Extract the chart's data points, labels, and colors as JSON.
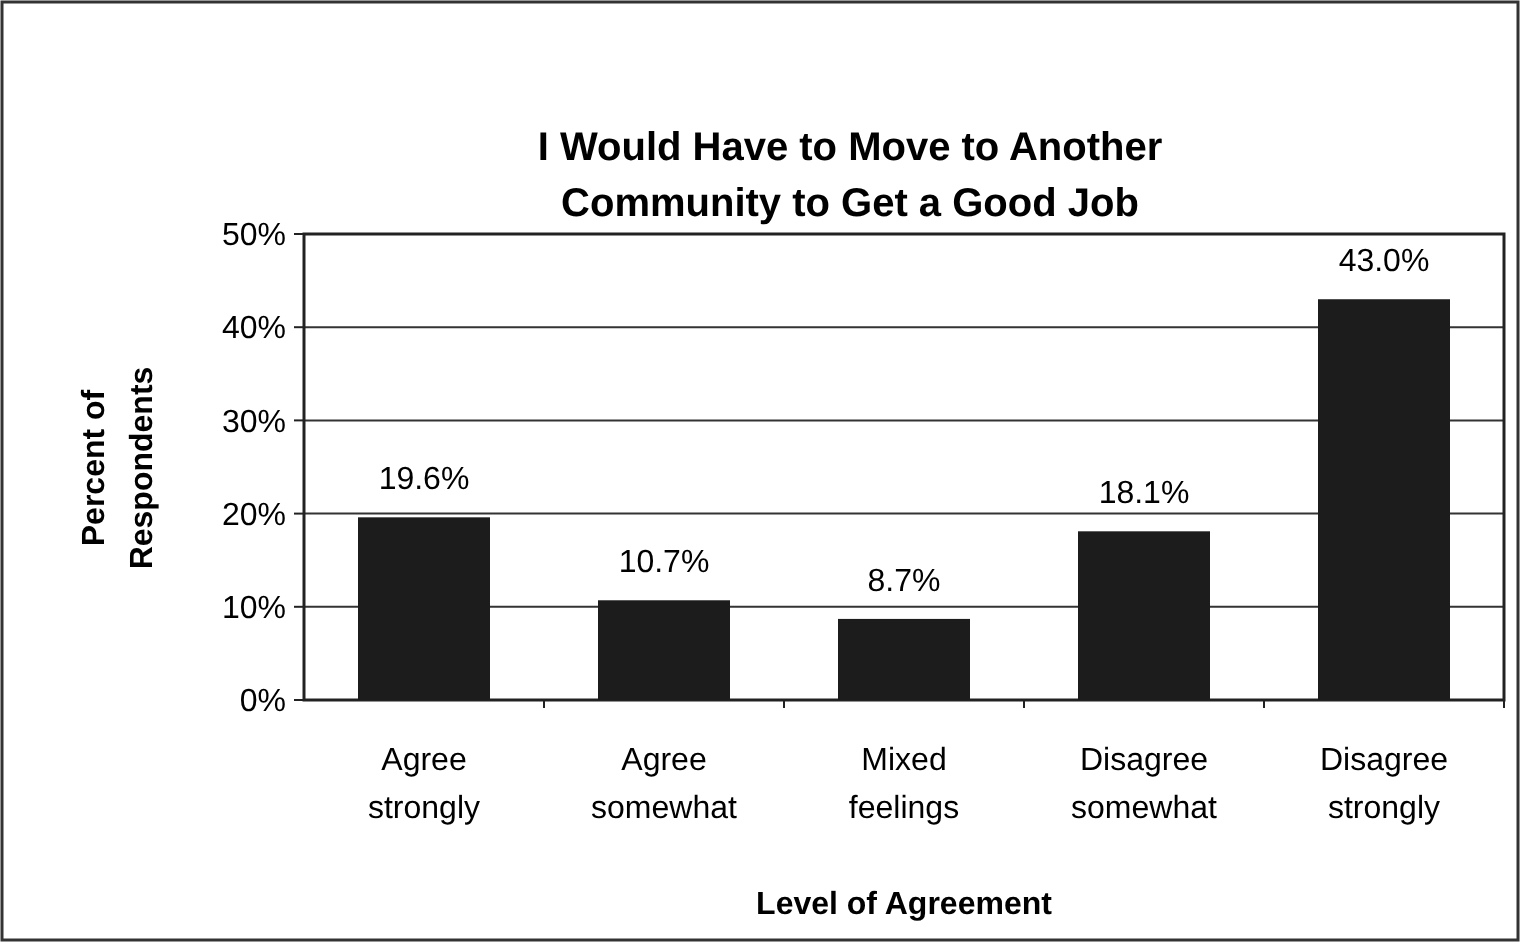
{
  "chart_data": {
    "type": "bar",
    "title": "I Would Have to Move to Another\nCommunity to Get a Good Job",
    "xlabel": "Level of Agreement",
    "ylabel": "Percent of\nRespondents",
    "categories": [
      "Agree\nstrongly",
      "Agree\nsomewhat",
      "Mixed\nfeelings",
      "Disagree\nsomewhat",
      "Disagree\nstrongly"
    ],
    "values": [
      19.6,
      10.7,
      8.7,
      18.1,
      43.0
    ],
    "value_labels": [
      "19.6%",
      "10.7%",
      "8.7%",
      "18.1%",
      "43.0%"
    ],
    "color": "#1c1c1c",
    "ylim": [
      0,
      50
    ],
    "yticks": [
      {
        "value": 0,
        "label": "0%"
      },
      {
        "value": 10,
        "label": "10%"
      },
      {
        "value": 20,
        "label": "20%"
      },
      {
        "value": 30,
        "label": "30%"
      },
      {
        "value": 40,
        "label": "40%"
      },
      {
        "value": 50,
        "label": "50%"
      }
    ],
    "grid": "y"
  }
}
